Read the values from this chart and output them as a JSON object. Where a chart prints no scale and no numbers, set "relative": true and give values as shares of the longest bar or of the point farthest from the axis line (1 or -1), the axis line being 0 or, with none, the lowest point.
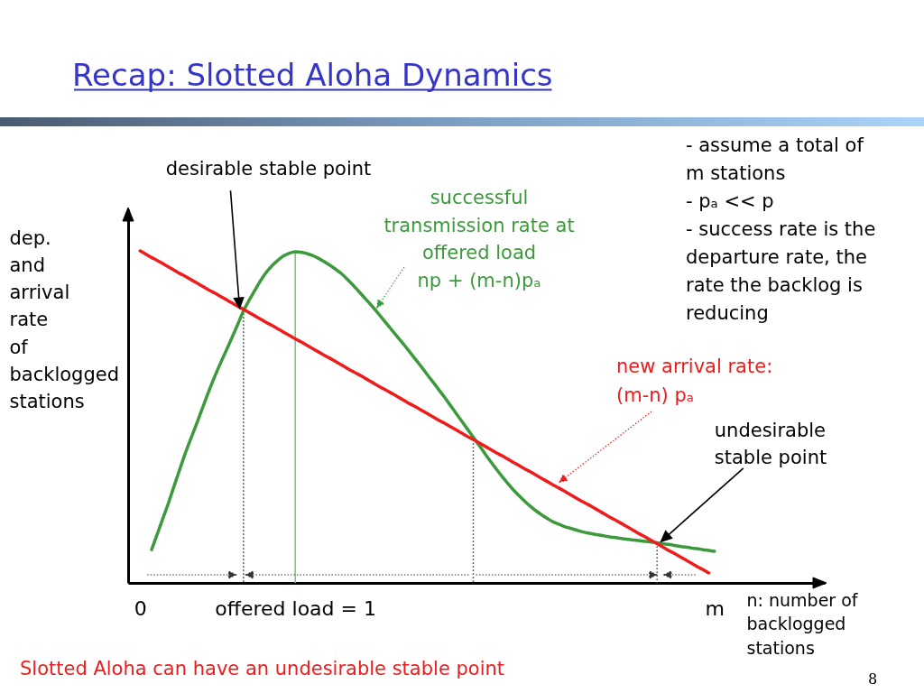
{
  "chart_data": {
    "type": "line",
    "title": "Recap: Slotted Aloha Dynamics",
    "xlabel": "n: number of\nbacklogged\nstations",
    "ylabel": "dep.\nand\narrival\nrate\nof\nbacklogged\nstations",
    "relative": true,
    "tick_labels": "x",
    "categories": [
      "0",
      null,
      null,
      null,
      null,
      null,
      null,
      null,
      null,
      null,
      null,
      null,
      null,
      null,
      null,
      null,
      null,
      null,
      null,
      null,
      null,
      null,
      null,
      null,
      null,
      null,
      null,
      "offered load = 1",
      null,
      null,
      null,
      null,
      null,
      null,
      null,
      null,
      null,
      null,
      null,
      null,
      null,
      null,
      null,
      null,
      null,
      null,
      null,
      null,
      null,
      null,
      null,
      null,
      null,
      null,
      null,
      null,
      null,
      null,
      null,
      null,
      null,
      null,
      null,
      null,
      null,
      null,
      null,
      null,
      null,
      null,
      null,
      null,
      null,
      null,
      null,
      null,
      null,
      null,
      null,
      null,
      null,
      null,
      null,
      null,
      null,
      null,
      null,
      null,
      null,
      null,
      null,
      null,
      null,
      null,
      null,
      null,
      null,
      null,
      null,
      null,
      "m"
    ],
    "series": [
      {
        "name": "successful\ntransmission rate at\noffered load\nnp + (m-n)pₐ",
        "color": "#3c9a3c",
        "values": [
          null,
          null,
          0.1,
          0.148,
          0.196,
          0.244,
          0.296,
          0.347,
          0.397,
          0.442,
          0.487,
          0.533,
          0.579,
          0.622,
          0.662,
          0.7,
          0.739,
          0.779,
          0.819,
          0.852,
          0.882,
          0.911,
          0.936,
          0.956,
          0.972,
          0.985,
          0.993,
          0.997,
          0.996,
          0.992,
          0.986,
          0.978,
          0.968,
          0.957,
          0.945,
          0.932,
          0.916,
          0.898,
          0.879,
          0.86,
          0.841,
          0.821,
          0.8,
          0.779,
          0.758,
          0.737,
          0.716,
          0.694,
          0.672,
          0.65,
          0.627,
          0.605,
          0.582,
          0.559,
          0.535,
          0.511,
          0.487,
          0.463,
          0.439,
          0.415,
          0.39,
          0.366,
          0.343,
          0.321,
          0.3,
          0.28,
          0.262,
          0.245,
          0.23,
          0.216,
          0.204,
          0.193,
          0.183,
          0.176,
          0.169,
          0.164,
          0.159,
          0.154,
          0.15,
          0.147,
          0.144,
          0.141,
          0.138,
          0.136,
          0.133,
          0.131,
          0.129,
          0.127,
          0.125,
          0.123,
          0.121,
          0.118,
          0.116,
          0.113,
          0.11,
          0.108,
          0.105,
          0.103,
          0.1,
          0.098,
          0.095
        ]
      },
      {
        "name": "new arrival rate:\n(m-n) pₐ",
        "color": "#ee1c1c",
        "values": [
          1,
          0.99,
          0.98,
          0.971,
          0.961,
          0.951,
          0.941,
          0.931,
          0.922,
          0.912,
          0.902,
          0.892,
          0.882,
          0.873,
          0.863,
          0.853,
          0.843,
          0.833,
          0.824,
          0.814,
          0.804,
          0.794,
          0.784,
          0.775,
          0.765,
          0.755,
          0.745,
          0.735,
          0.726,
          0.716,
          0.706,
          0.696,
          0.686,
          0.677,
          0.667,
          0.657,
          0.647,
          0.637,
          0.628,
          0.618,
          0.608,
          0.598,
          0.588,
          0.579,
          0.569,
          0.559,
          0.549,
          0.539,
          0.53,
          0.52,
          0.51,
          0.5,
          0.49,
          0.481,
          0.471,
          0.461,
          0.451,
          0.441,
          0.432,
          0.422,
          0.412,
          0.402,
          0.392,
          0.383,
          0.373,
          0.363,
          0.353,
          0.343,
          0.334,
          0.324,
          0.314,
          0.304,
          0.294,
          0.285,
          0.275,
          0.265,
          0.255,
          0.245,
          0.236,
          0.226,
          0.216,
          0.206,
          0.196,
          0.187,
          0.177,
          0.167,
          0.157,
          0.147,
          0.138,
          0.128,
          0.118,
          0.108,
          0.098,
          0.089,
          0.079,
          0.069,
          0.059,
          0.049,
          0.04,
          0.03,
          null
        ]
      },
      {
        "type": "bar",
        "color": "#555555",
        "line_style": "dotted",
        "values": [
          null,
          null,
          null,
          null,
          null,
          null,
          null,
          null,
          null,
          null,
          null,
          null,
          null,
          null,
          null,
          null,
          null,
          null,
          0.82,
          null,
          null,
          null,
          null,
          null,
          null,
          null,
          null,
          null,
          null,
          null,
          null,
          null,
          null,
          null,
          null,
          null,
          null,
          null,
          null,
          null,
          null,
          null,
          null,
          null,
          null,
          null,
          null,
          null,
          null,
          null,
          null,
          null,
          null,
          null,
          null,
          null,
          null,
          null,
          0.43,
          null,
          null,
          null,
          null,
          null,
          null,
          null,
          null,
          null,
          null,
          null,
          null,
          null,
          null,
          null,
          null,
          null,
          null,
          null,
          null,
          null,
          null,
          null,
          null,
          null,
          null,
          null,
          null,
          null,
          null,
          null,
          0.12,
          null,
          null,
          null,
          null,
          null,
          null,
          null,
          null,
          null,
          null
        ]
      },
      {
        "type": "bar",
        "color": "#7dbf7d",
        "values": [
          null,
          null,
          null,
          null,
          null,
          null,
          null,
          null,
          null,
          null,
          null,
          null,
          null,
          null,
          null,
          null,
          null,
          null,
          null,
          null,
          null,
          null,
          null,
          null,
          null,
          null,
          null,
          0.997,
          null,
          null,
          null,
          null,
          null,
          null,
          null,
          null,
          null,
          null,
          null,
          null,
          null,
          null,
          null,
          null,
          null,
          null,
          null,
          null,
          null,
          null,
          null,
          null,
          null,
          null,
          null,
          null,
          null,
          null,
          null,
          null,
          null,
          null,
          null,
          null,
          null,
          null,
          null,
          null,
          null,
          null,
          null,
          null,
          null,
          null,
          null,
          null,
          null,
          null,
          null,
          null,
          null,
          null,
          null,
          null,
          null,
          null,
          null,
          null,
          null,
          null,
          null,
          null,
          null,
          null,
          null,
          null,
          null,
          null,
          null,
          null,
          null
        ]
      }
    ],
    "annotations": [
      "desirable stable point",
      "undesirable\nstable point",
      "- assume a total of\nm stations\n- pₐ << p\n- success rate is the\ndeparture rate, the\nrate the backlog is\nreducing",
      "Slotted Aloha can have an undesirable stable point",
      "8"
    ]
  }
}
